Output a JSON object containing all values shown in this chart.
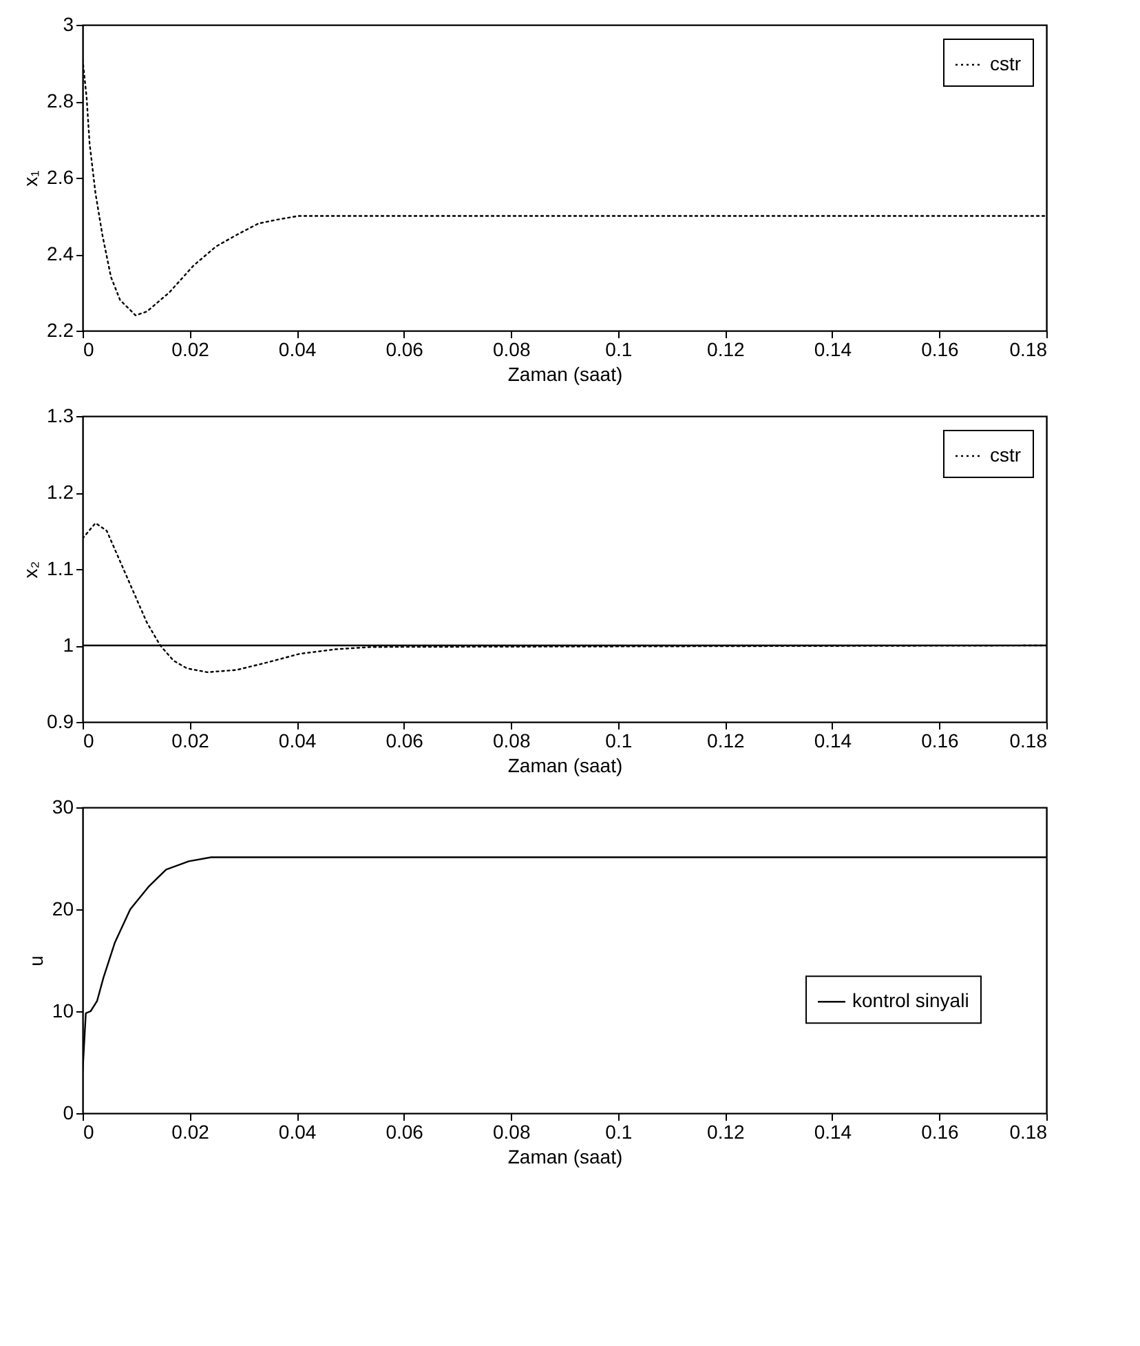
{
  "chart_data": [
    {
      "type": "line",
      "xlabel": "Zaman (saat)",
      "ylabel": "x₁",
      "xlim": [
        0,
        0.18
      ],
      "ylim": [
        2.2,
        3
      ],
      "xticks": [
        0,
        0.02,
        0.04,
        0.06,
        0.08,
        0.1,
        0.12,
        0.14,
        0.16,
        0.18
      ],
      "yticks": [
        2.2,
        2.4,
        2.6,
        2.8,
        3
      ],
      "legend": "top right",
      "line_style": "dotted",
      "x": [
        0,
        0.00075,
        0.0013,
        0.0024,
        0.0037,
        0.0053,
        0.007,
        0.0099,
        0.012,
        0.0162,
        0.0207,
        0.0249,
        0.0287,
        0.0328,
        0.0362,
        0.0403,
        0.0453,
        0.18
      ],
      "series": [
        {
          "name": "cstr",
          "color": "#000000",
          "values": [
            2.91,
            2.81,
            2.69,
            2.56,
            2.45,
            2.34,
            2.28,
            2.24,
            2.25,
            2.3,
            2.37,
            2.42,
            2.45,
            2.48,
            2.49,
            2.5,
            2.5,
            2.5
          ]
        }
      ]
    },
    {
      "type": "line",
      "xlabel": "Zaman (saat)",
      "ylabel": "x₂",
      "xlim": [
        0,
        0.18
      ],
      "ylim": [
        0.9,
        1.3
      ],
      "xticks": [
        0,
        0.02,
        0.04,
        0.06,
        0.08,
        0.1,
        0.12,
        0.14,
        0.16,
        0.18
      ],
      "yticks": [
        0.9,
        1,
        1.1,
        1.2,
        1.3
      ],
      "legend": "top right",
      "line_style": "dotted",
      "x": [
        0,
        0.0024,
        0.0045,
        0.007,
        0.0095,
        0.012,
        0.0145,
        0.017,
        0.0195,
        0.0233,
        0.0288,
        0.0346,
        0.0405,
        0.0472,
        0.054,
        0.18
      ],
      "series": [
        {
          "name": "cstr",
          "color": "#000000",
          "values": [
            1.14,
            1.16,
            1.15,
            1.11,
            1.07,
            1.03,
            1.0,
            0.98,
            0.97,
            0.965,
            0.968,
            0.978,
            0.989,
            0.995,
            0.998,
            1.0
          ]
        }
      ],
      "ref_lines": [
        {
          "axis": "y",
          "value": 1,
          "color": "#000000",
          "line_style": "solid"
        }
      ]
    },
    {
      "type": "line",
      "xlabel": "Zaman (saat)",
      "ylabel": "u",
      "xlim": [
        0,
        0.18
      ],
      "ylim": [
        0,
        30
      ],
      "xticks": [
        0,
        0.02,
        0.04,
        0.06,
        0.08,
        0.1,
        0.12,
        0.14,
        0.16,
        0.18
      ],
      "yticks": [
        0,
        10,
        20,
        30
      ],
      "legend": "right",
      "line_style": "solid",
      "x": [
        0,
        0.0006,
        0.0015,
        0.0027,
        0.0039,
        0.006,
        0.0089,
        0.0123,
        0.0156,
        0.0198,
        0.024,
        0.18
      ],
      "series": [
        {
          "name": "kontrol sinyali",
          "color": "#000000",
          "values": [
            4,
            9.8,
            10,
            11,
            13.3,
            16.7,
            20,
            22.2,
            23.9,
            24.7,
            25.1,
            25.1
          ]
        }
      ]
    }
  ]
}
